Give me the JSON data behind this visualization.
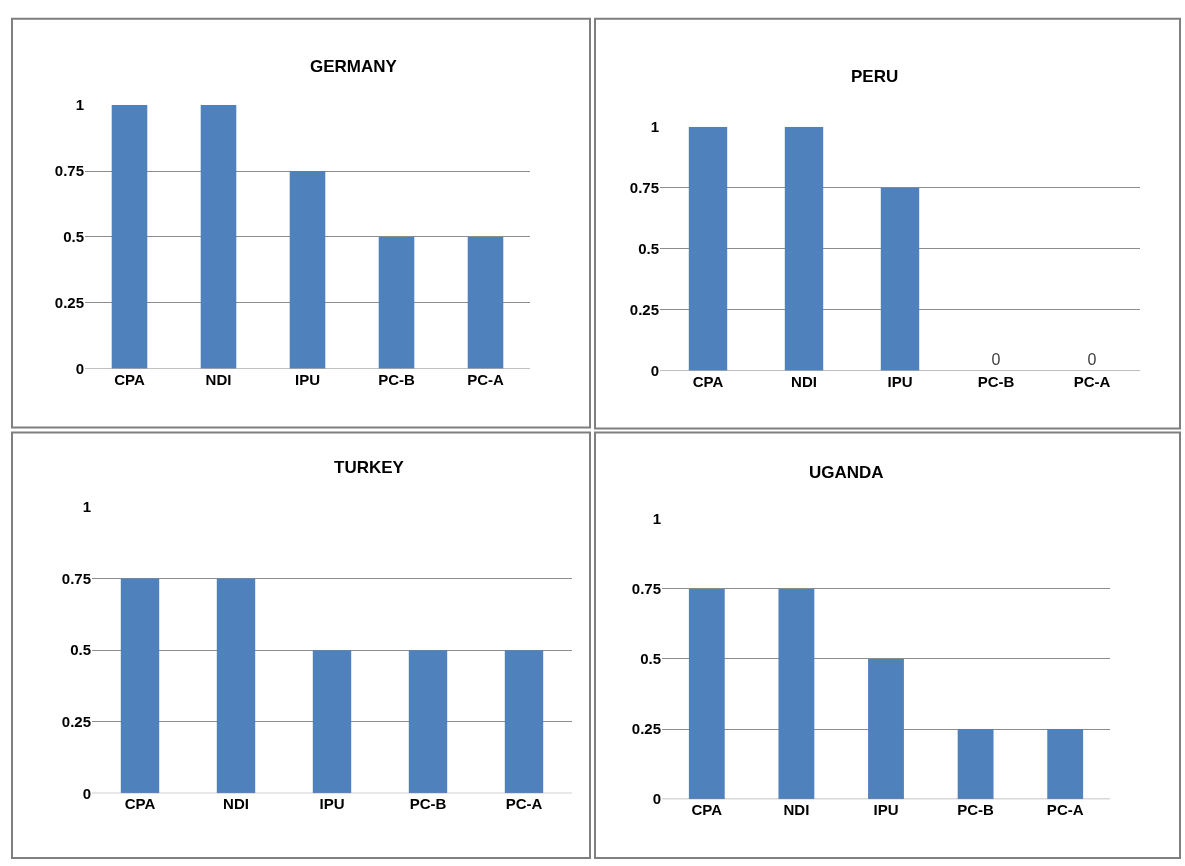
{
  "chart_data": [
    {
      "type": "bar",
      "title": "GERMANY",
      "categories": [
        "CPA",
        "NDI",
        "IPU",
        "PC-B",
        "PC-A"
      ],
      "values": [
        1,
        1,
        0.75,
        0.5,
        0.5
      ],
      "color": "#4f81bd",
      "ylim": [
        0,
        1
      ],
      "yticks": [
        0,
        0.25,
        0.5,
        0.75,
        1
      ],
      "grid": "y"
    },
    {
      "type": "bar",
      "title": "PERU",
      "categories": [
        "CPA",
        "NDI",
        "IPU",
        "PC-B",
        "PC-A"
      ],
      "values": [
        1,
        1,
        0.75,
        0,
        0
      ],
      "value_labels": [
        null,
        null,
        null,
        "0",
        "0"
      ],
      "color": "#4f81bd",
      "ylim": [
        0,
        1
      ],
      "yticks": [
        0,
        0.25,
        0.5,
        0.75,
        1
      ],
      "grid": "y"
    },
    {
      "type": "bar",
      "title": "TURKEY",
      "categories": [
        "CPA",
        "NDI",
        "IPU",
        "PC-B",
        "PC-A"
      ],
      "values": [
        0.75,
        0.75,
        0.5,
        0.5,
        0.5
      ],
      "color": "#4f81bd",
      "ylim": [
        0,
        1
      ],
      "yticks": [
        0,
        0.25,
        0.5,
        0.75,
        1
      ],
      "grid": "y"
    },
    {
      "type": "bar",
      "title": "UGANDA",
      "categories": [
        "CPA",
        "NDI",
        "IPU",
        "PC-B",
        "PC-A"
      ],
      "values": [
        0.75,
        0.75,
        0.5,
        0.25,
        0.25
      ],
      "color": "#4f81bd",
      "ylim": [
        0,
        1
      ],
      "yticks": [
        0,
        0.25,
        0.5,
        0.75,
        1
      ],
      "grid": "y"
    }
  ]
}
